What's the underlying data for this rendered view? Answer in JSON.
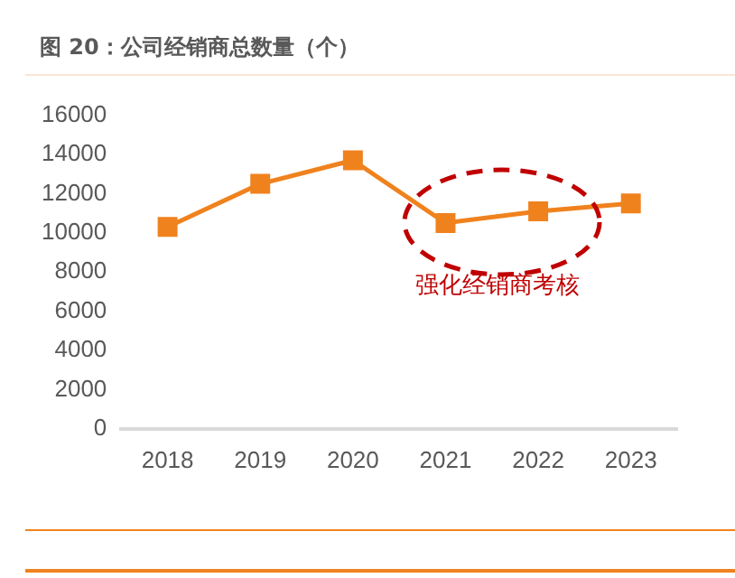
{
  "chart_data": {
    "type": "line",
    "title": "图 20：公司经销商总数量（个）",
    "categories": [
      "2018",
      "2019",
      "2020",
      "2021",
      "2022",
      "2023"
    ],
    "series": [
      {
        "color": "#f0821e",
        "values": [
          10300,
          12500,
          13700,
          10500,
          11100,
          11500
        ]
      }
    ],
    "ylim": [
      0,
      16000
    ],
    "yticks": [
      0,
      2000,
      4000,
      6000,
      8000,
      10000,
      12000,
      14000,
      16000
    ],
    "grid": false,
    "legend": false,
    "marker": "square",
    "line_style": "solid",
    "annotations": [
      "强化经销商考核"
    ]
  }
}
